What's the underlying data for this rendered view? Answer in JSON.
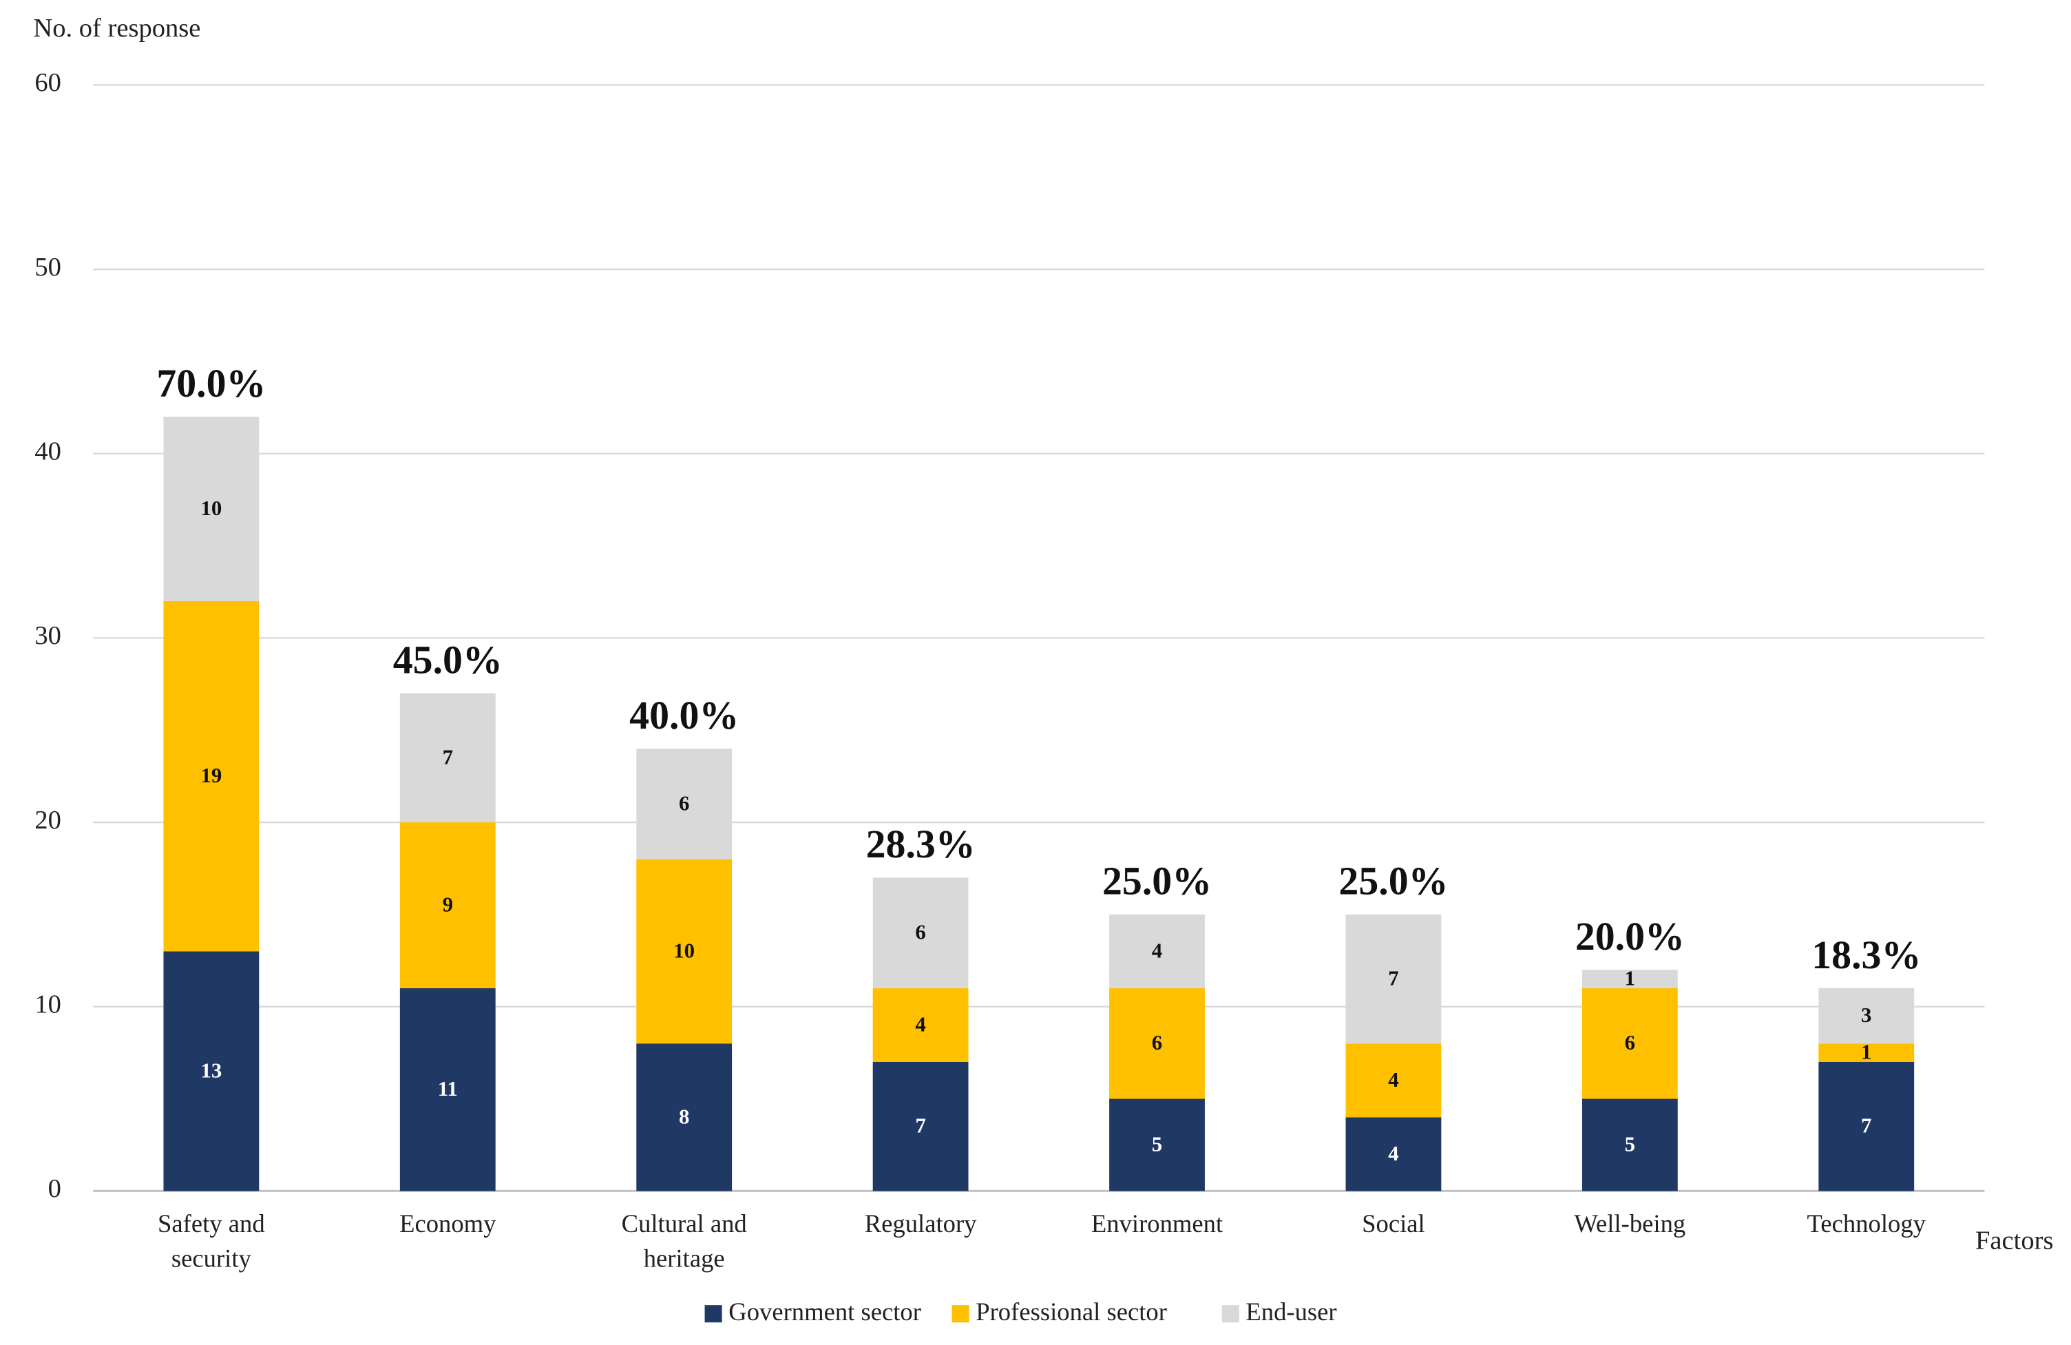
{
  "chart_data": {
    "type": "stacked_bar",
    "y_label": "No. of response",
    "x_label": "Factors",
    "categories": [
      "Safety and security",
      "Economy",
      "Cultural and heritage",
      "Regulatory",
      "Environment",
      "Social",
      "Well-being",
      "Technology"
    ],
    "series": [
      {
        "name": "Government sector",
        "color": "#1f3864",
        "values": [
          13,
          11,
          8,
          7,
          5,
          4,
          5,
          7
        ]
      },
      {
        "name": "Professional sector",
        "color": "#ffc000",
        "values": [
          19,
          9,
          10,
          4,
          6,
          4,
          6,
          1
        ]
      },
      {
        "name": "End-user",
        "color": "#d9d9d9",
        "values": [
          10,
          7,
          6,
          6,
          4,
          7,
          1,
          3
        ]
      }
    ],
    "annotations": [
      "70.0%",
      "45.0%",
      "40.0%",
      "28.3%",
      "25.0%",
      "25.0%",
      "20.0%",
      "18.3%"
    ],
    "ylim": [
      0,
      60
    ],
    "yticks": [
      0,
      10,
      20,
      30,
      40,
      50,
      60
    ],
    "grid": true,
    "legend": "bottom"
  }
}
